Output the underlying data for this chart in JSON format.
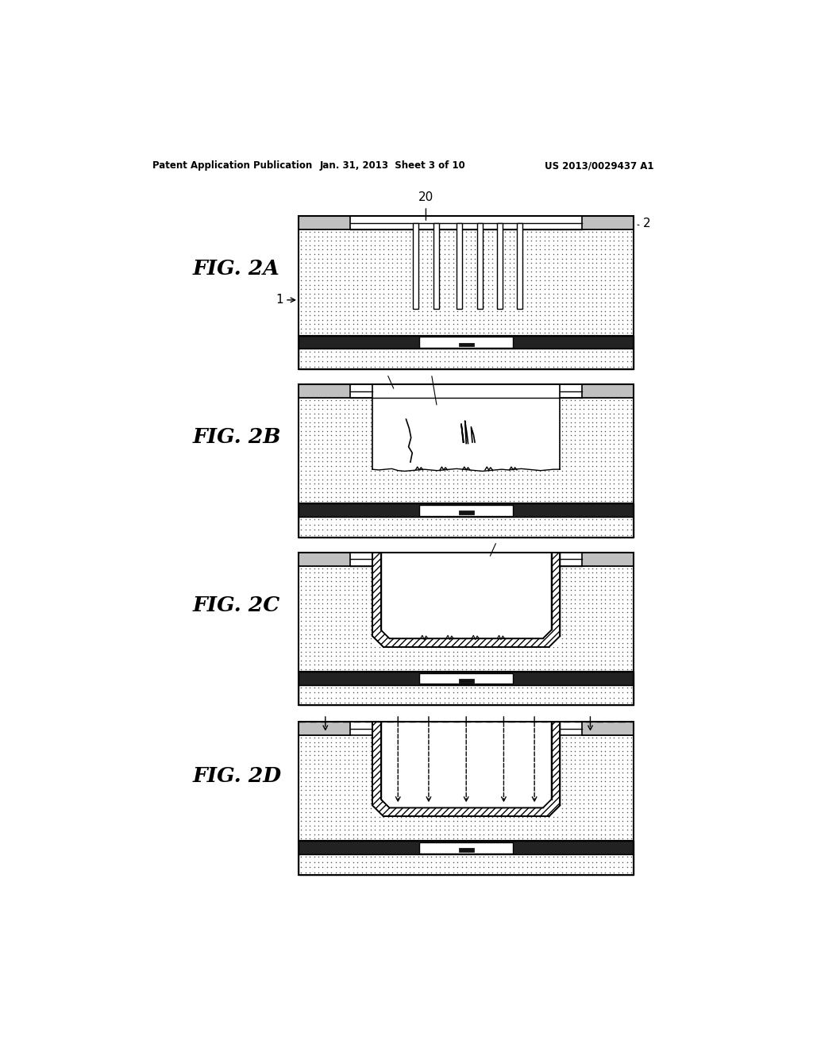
{
  "title_left": "Patent Application Publication",
  "title_mid": "Jan. 31, 2013  Sheet 3 of 10",
  "title_right": "US 2013/0029437 A1",
  "fig_labels": [
    "FIG. 2A",
    "FIG. 2B",
    "FIG. 2C",
    "FIG. 2D"
  ],
  "background_color": "#ffffff",
  "stipple_color": "#888888",
  "hatch_top_color": "#b8b8b8",
  "bottom_layer_color": "#888888",
  "dark_bar_color": "#1a1a1a",
  "lining_hatch_color": "#c0c0c0"
}
